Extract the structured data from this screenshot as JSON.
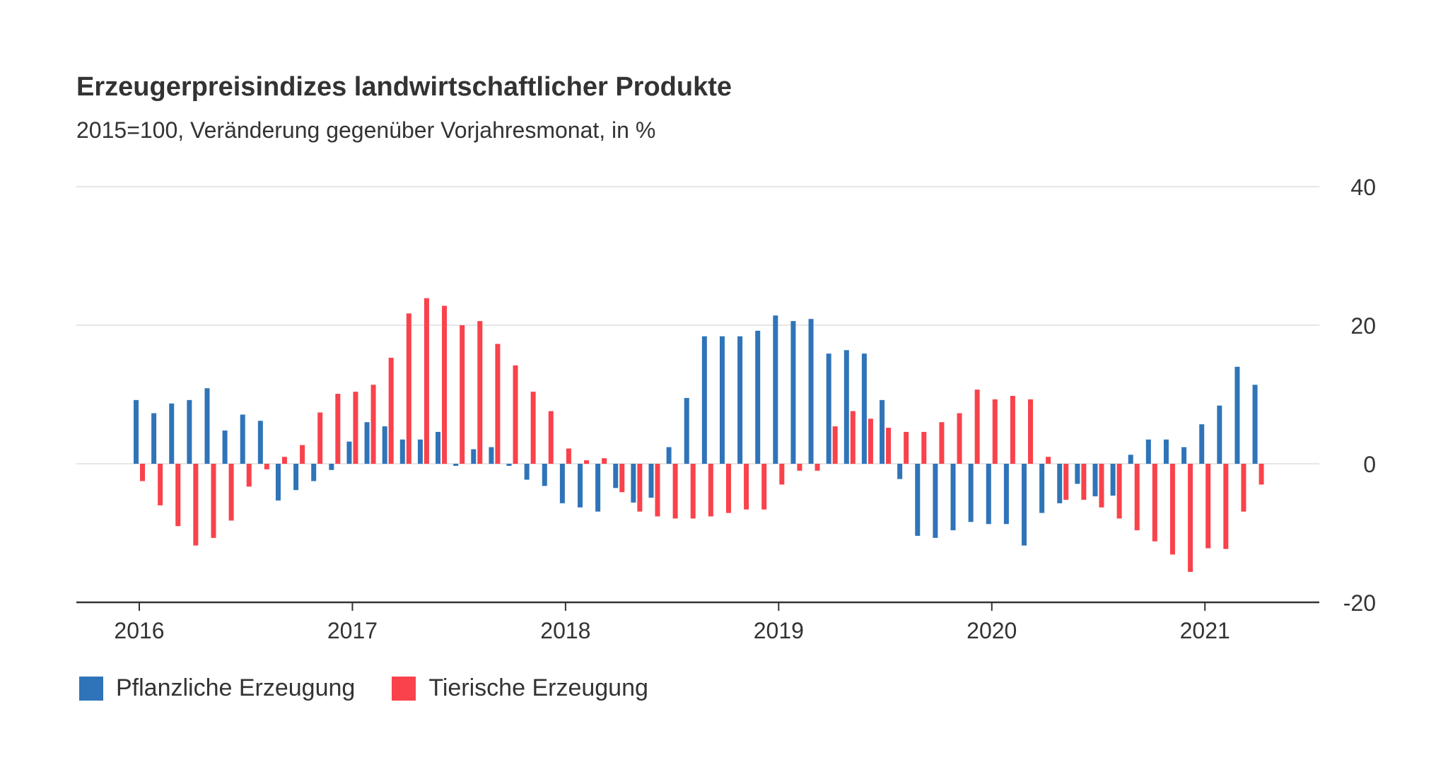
{
  "chart_data": {
    "type": "bar",
    "title": "Erzeugerpreisindizes landwirtschaftlicher Produkte",
    "subtitle": "2015=100, Veränderung gegenüber Vorjahresmonat, in %",
    "xlabel": "",
    "ylabel": "",
    "ylim": [
      -20,
      40
    ],
    "yticks": [
      40,
      20,
      0,
      -20
    ],
    "x_tick_labels": [
      "2016",
      "2017",
      "2018",
      "2019",
      "2020",
      "2021"
    ],
    "grid": true,
    "legend_position": "bottom-left",
    "categories": [
      "2016-01",
      "2016-02",
      "2016-03",
      "2016-04",
      "2016-05",
      "2016-06",
      "2016-07",
      "2016-08",
      "2016-09",
      "2016-10",
      "2016-11",
      "2016-12",
      "2017-01",
      "2017-02",
      "2017-03",
      "2017-04",
      "2017-05",
      "2017-06",
      "2017-07",
      "2017-08",
      "2017-09",
      "2017-10",
      "2017-11",
      "2017-12",
      "2018-01",
      "2018-02",
      "2018-03",
      "2018-04",
      "2018-05",
      "2018-06",
      "2018-07",
      "2018-08",
      "2018-09",
      "2018-10",
      "2018-11",
      "2018-12",
      "2019-01",
      "2019-02",
      "2019-03",
      "2019-04",
      "2019-05",
      "2019-06",
      "2019-07",
      "2019-08",
      "2019-09",
      "2019-10",
      "2019-11",
      "2019-12",
      "2020-01",
      "2020-02",
      "2020-03",
      "2020-04",
      "2020-05",
      "2020-06",
      "2020-07",
      "2020-08",
      "2020-09",
      "2020-10",
      "2020-11",
      "2020-12",
      "2021-01",
      "2021-02",
      "2021-03",
      "2021-04"
    ],
    "series": [
      {
        "name": "Pflanzliche Erzeugung",
        "color": "#2f74b8",
        "values": [
          9.2,
          7.3,
          8.7,
          9.2,
          10.9,
          4.8,
          7.1,
          6.2,
          -5.3,
          -3.8,
          -2.5,
          -0.9,
          3.2,
          6.0,
          5.4,
          3.5,
          3.5,
          4.6,
          -0.3,
          2.1,
          2.4,
          -0.3,
          -2.3,
          -3.2,
          -5.7,
          -6.3,
          -6.9,
          -3.5,
          -5.6,
          -4.9,
          2.4,
          9.5,
          18.4,
          18.4,
          18.4,
          19.2,
          21.4,
          20.6,
          20.9,
          15.9,
          16.4,
          15.9,
          9.2,
          -2.2,
          -10.4,
          -10.7,
          -9.6,
          -8.4,
          -8.7,
          -8.7,
          -11.8,
          -7.1,
          -5.7,
          -2.9,
          -4.7,
          -4.6,
          1.3,
          3.5,
          3.5,
          2.4,
          5.7,
          8.4,
          14.0,
          11.4
        ]
      },
      {
        "name": "Tierische Erzeugung",
        "color": "#f9424b",
        "values": [
          -2.5,
          -6.0,
          -9.0,
          -11.8,
          -10.7,
          -8.2,
          -3.3,
          -0.8,
          1.0,
          2.7,
          7.4,
          10.1,
          10.4,
          11.4,
          15.3,
          21.7,
          23.9,
          22.8,
          20.0,
          20.6,
          17.3,
          14.2,
          10.4,
          7.6,
          2.2,
          0.5,
          0.8,
          -4.1,
          -6.9,
          -7.6,
          -7.9,
          -7.9,
          -7.6,
          -7.1,
          -6.6,
          -6.6,
          -3.0,
          -1.0,
          -1.0,
          5.4,
          7.6,
          6.5,
          5.2,
          4.6,
          4.6,
          6.0,
          7.3,
          10.7,
          9.3,
          9.8,
          9.3,
          1.0,
          -5.2,
          -5.2,
          -6.3,
          -7.9,
          -9.6,
          -11.2,
          -13.1,
          -15.6,
          -12.2,
          -12.3,
          -6.9,
          -3.0
        ]
      }
    ]
  }
}
